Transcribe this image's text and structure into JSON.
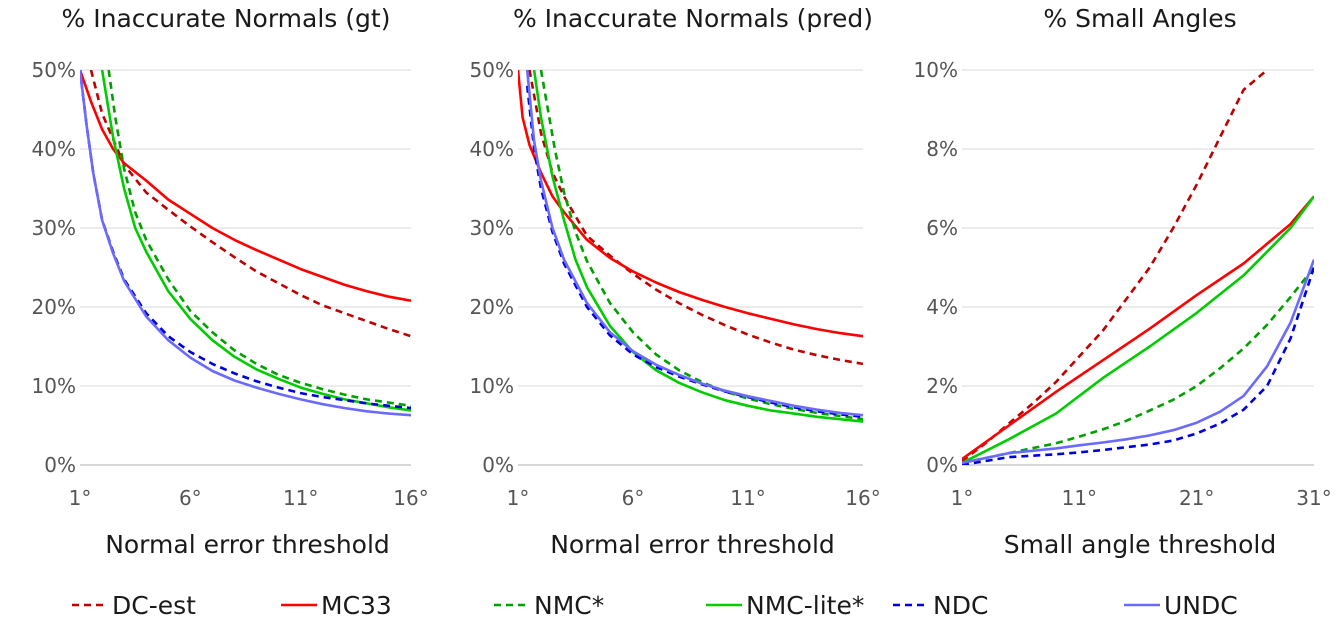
{
  "chart_data": [
    {
      "type": "line",
      "title": "% Inaccurate Normals (gt)",
      "xlabel": "Normal error threshold",
      "ylabel": "",
      "xlim": [
        1,
        16
      ],
      "ylim": [
        0,
        50
      ],
      "yticks": [
        "0%",
        "10%",
        "20%",
        "30%",
        "40%",
        "50%"
      ],
      "xticks": [
        "1°",
        "6°",
        "11°",
        "16°"
      ],
      "grid": true,
      "series": [
        {
          "name": "DC-est",
          "x": [
            1.5,
            2,
            3,
            4,
            5,
            6,
            7,
            8,
            9,
            10,
            11,
            12,
            13,
            14,
            15,
            16
          ],
          "y": [
            50,
            44.5,
            38,
            34.5,
            32.3,
            30.2,
            28.2,
            26.3,
            24.5,
            23,
            21.5,
            20.2,
            19.2,
            18.2,
            17.2,
            16.3
          ]
        },
        {
          "name": "MC33",
          "x": [
            1,
            1.5,
            2,
            2.5,
            3,
            4,
            5,
            6,
            7,
            8,
            9,
            10,
            11,
            12,
            13,
            14,
            15,
            16
          ],
          "y": [
            50,
            46,
            42.5,
            40,
            38.2,
            36,
            33.6,
            31.8,
            30,
            28.5,
            27.2,
            26,
            24.8,
            23.8,
            22.8,
            22,
            21.3,
            20.8
          ]
        },
        {
          "name": "NMC*",
          "x": [
            2.3,
            2.6,
            3,
            3.5,
            4,
            5,
            6,
            7,
            8,
            9,
            10,
            11,
            12,
            13,
            14,
            15,
            16
          ],
          "y": [
            50,
            44,
            37.5,
            32,
            28.5,
            23.5,
            19.5,
            16.8,
            14.5,
            12.8,
            11.4,
            10.4,
            9.6,
            8.9,
            8.3,
            7.9,
            7.5
          ]
        },
        {
          "name": "NMC-lite*",
          "x": [
            2,
            2.5,
            3,
            3.5,
            4,
            5,
            6,
            7,
            8,
            9,
            10,
            11,
            12,
            13,
            14,
            15,
            16
          ],
          "y": [
            50,
            41.5,
            35,
            30,
            27,
            22,
            18.5,
            15.8,
            13.7,
            12.1,
            10.9,
            9.8,
            9,
            8.3,
            7.8,
            7.3,
            6.9
          ]
        },
        {
          "name": "NDC",
          "x": [
            1,
            1.3,
            1.6,
            2,
            2.5,
            3,
            4,
            5,
            6,
            7,
            8,
            9,
            10,
            11,
            12,
            13,
            14,
            15,
            16
          ],
          "y": [
            50,
            43,
            37,
            31,
            27,
            23.5,
            19.2,
            16.3,
            14.3,
            12.8,
            11.6,
            10.6,
            9.8,
            9.1,
            8.6,
            8.2,
            7.8,
            7.5,
            7.2
          ]
        },
        {
          "name": "UNDC",
          "x": [
            1,
            1.3,
            1.6,
            2,
            2.5,
            3,
            4,
            5,
            6,
            7,
            8,
            9,
            10,
            11,
            12,
            13,
            14,
            15,
            16
          ],
          "y": [
            50,
            43,
            37,
            31,
            26.8,
            23.3,
            18.8,
            15.8,
            13.6,
            11.9,
            10.7,
            9.8,
            9,
            8.3,
            7.7,
            7.2,
            6.8,
            6.5,
            6.3
          ]
        }
      ]
    },
    {
      "type": "line",
      "title": "% Inaccurate Normals (pred)",
      "xlabel": "Normal error threshold",
      "ylabel": "",
      "xlim": [
        1,
        16
      ],
      "ylim": [
        0,
        50
      ],
      "yticks": [
        "0%",
        "10%",
        "20%",
        "30%",
        "40%",
        "50%"
      ],
      "xticks": [
        "1°",
        "6°",
        "11°",
        "16°"
      ],
      "grid": true,
      "series": [
        {
          "name": "DC-est",
          "x": [
            1.5,
            2,
            2.5,
            3,
            4,
            5,
            6,
            7,
            8,
            9,
            10,
            11,
            12,
            13,
            14,
            15,
            16
          ],
          "y": [
            50,
            42,
            37,
            34,
            29,
            26.5,
            24.2,
            22.2,
            20.5,
            19,
            17.7,
            16.5,
            15.5,
            14.6,
            13.9,
            13.3,
            12.8
          ]
        },
        {
          "name": "MC33",
          "x": [
            1,
            1.2,
            1.5,
            2,
            2.5,
            3,
            4,
            5,
            6,
            7,
            8,
            9,
            10,
            11,
            12,
            13,
            14,
            15,
            16
          ],
          "y": [
            50,
            44,
            40.5,
            37,
            34,
            32,
            28.5,
            26.2,
            24.5,
            23.1,
            21.9,
            20.9,
            20,
            19.2,
            18.5,
            17.8,
            17.2,
            16.7,
            16.3
          ]
        },
        {
          "name": "NMC*",
          "x": [
            2,
            2.3,
            2.6,
            3,
            3.5,
            4,
            5,
            6,
            7,
            8,
            9,
            10,
            11,
            12,
            13,
            14,
            15,
            16
          ],
          "y": [
            50,
            45,
            40,
            34.5,
            29.5,
            25.8,
            20.5,
            16.8,
            14,
            12,
            10.5,
            9.3,
            8.4,
            7.7,
            7.1,
            6.6,
            6.2,
            5.8
          ]
        },
        {
          "name": "NMC-lite*",
          "x": [
            1.7,
            2,
            2.5,
            3,
            3.5,
            4,
            5,
            6,
            7,
            8,
            9,
            10,
            11,
            12,
            13,
            14,
            15,
            16
          ],
          "y": [
            50,
            44,
            36.5,
            31,
            26,
            22.5,
            17.6,
            14.3,
            12,
            10.4,
            9.2,
            8.2,
            7.5,
            6.9,
            6.5,
            6.1,
            5.8,
            5.5
          ]
        },
        {
          "name": "NDC",
          "x": [
            1.4,
            1.7,
            2,
            2.5,
            3,
            4,
            5,
            6,
            7,
            8,
            9,
            10,
            11,
            12,
            13,
            14,
            15,
            16
          ],
          "y": [
            48,
            40,
            35,
            29.5,
            25.5,
            20,
            16.4,
            14,
            12.4,
            11.2,
            10.2,
            9.3,
            8.6,
            7.9,
            7.3,
            6.8,
            6.4,
            6.1
          ]
        },
        {
          "name": "UNDC",
          "x": [
            1.4,
            1.7,
            2,
            2.5,
            3,
            4,
            5,
            6,
            7,
            8,
            9,
            10,
            11,
            12,
            13,
            14,
            15,
            16
          ],
          "y": [
            50,
            41,
            36,
            30,
            26,
            20.5,
            16.8,
            14.4,
            12.7,
            11.4,
            10.3,
            9.4,
            8.7,
            8.1,
            7.5,
            7,
            6.6,
            6.3
          ]
        }
      ]
    },
    {
      "type": "line",
      "title": "% Small Angles",
      "xlabel": "Small angle threshold",
      "ylabel": "",
      "xlim": [
        1,
        31
      ],
      "ylim": [
        0,
        10
      ],
      "yticks": [
        "0%",
        "2%",
        "4%",
        "6%",
        "8%",
        "10%"
      ],
      "xticks": [
        "1°",
        "11°",
        "21°",
        "31°"
      ],
      "grid": true,
      "series": [
        {
          "name": "DC-est",
          "x": [
            1,
            3,
            5,
            7,
            9,
            11,
            13,
            15,
            17,
            19,
            21,
            23,
            25,
            27
          ],
          "y": [
            0.1,
            0.55,
            1.05,
            1.55,
            2.1,
            2.75,
            3.4,
            4.2,
            5,
            6,
            7.1,
            8.3,
            9.5,
            10
          ]
        },
        {
          "name": "MC33",
          "x": [
            1,
            5,
            9,
            13,
            17,
            21,
            25,
            29,
            31
          ],
          "y": [
            0.15,
            1,
            1.85,
            2.65,
            3.45,
            4.3,
            5.1,
            6.1,
            6.8
          ]
        },
        {
          "name": "NMC*",
          "x": [
            1,
            5,
            9,
            11,
            13,
            15,
            17,
            19,
            21,
            23,
            25,
            27,
            29,
            31
          ],
          "y": [
            0.05,
            0.3,
            0.55,
            0.72,
            0.9,
            1.12,
            1.38,
            1.65,
            2,
            2.45,
            2.95,
            3.55,
            4.25,
            5
          ]
        },
        {
          "name": "NMC-lite*",
          "x": [
            1,
            5,
            9,
            13,
            17,
            21,
            25,
            27,
            29,
            31
          ],
          "y": [
            0.05,
            0.65,
            1.3,
            2.2,
            3,
            3.85,
            4.8,
            5.4,
            6,
            6.8
          ]
        },
        {
          "name": "NDC",
          "x": [
            1,
            5,
            9,
            11,
            13,
            15,
            17,
            19,
            21,
            23,
            25,
            27,
            29,
            31
          ],
          "y": [
            0,
            0.2,
            0.27,
            0.32,
            0.38,
            0.45,
            0.52,
            0.62,
            0.8,
            1.05,
            1.4,
            2,
            3.2,
            5
          ]
        },
        {
          "name": "UNDC",
          "x": [
            1,
            5,
            9,
            11,
            13,
            15,
            17,
            19,
            21,
            23,
            25,
            27,
            29,
            31
          ],
          "y": [
            0.05,
            0.3,
            0.42,
            0.5,
            0.57,
            0.65,
            0.75,
            0.88,
            1.07,
            1.35,
            1.75,
            2.5,
            3.6,
            5.2
          ]
        }
      ]
    }
  ],
  "legend": [
    {
      "name": "DC-est",
      "color": "#c00000",
      "dash": true
    },
    {
      "name": "MC33",
      "color": "#ff0000",
      "dash": false
    },
    {
      "name": "NMC*",
      "color": "#00a000",
      "dash": true
    },
    {
      "name": "NMC-lite*",
      "color": "#00cc00",
      "dash": false
    },
    {
      "name": "NDC",
      "color": "#0000dd",
      "dash": true
    },
    {
      "name": "UNDC",
      "color": "#6a6aff",
      "dash": false
    }
  ]
}
